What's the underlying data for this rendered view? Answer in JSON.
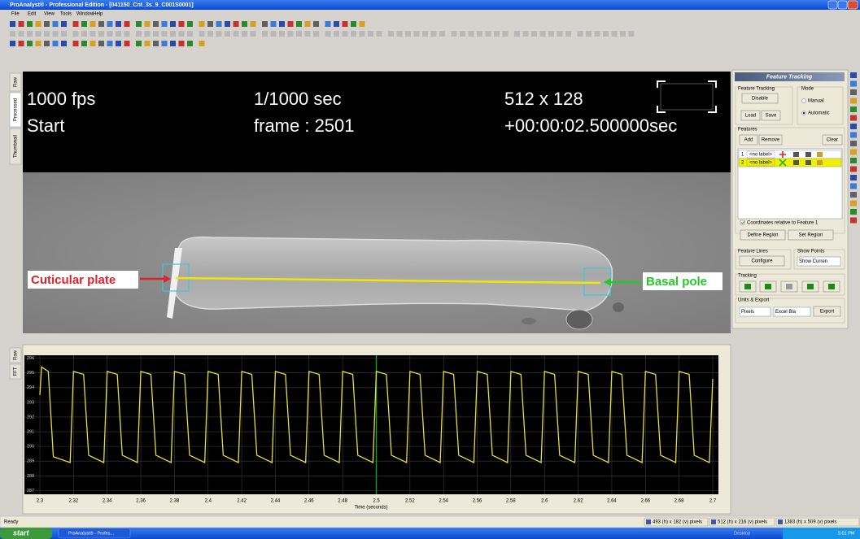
{
  "window": {
    "title": "ProAnalyst® - Professional Edition - [041150_Cnt_3s_9_C001S0001]",
    "menu": [
      "File",
      "Edit",
      "View",
      "Tools",
      "Window",
      "Help"
    ]
  },
  "view_tabs": [
    "Raw",
    "Processed",
    "Thumbnail"
  ],
  "overlay": {
    "fps": "1000 fps",
    "status": "Start",
    "shutter": "1/1000 sec",
    "frame": "frame : 2501",
    "resolution": "512 x 128",
    "timestamp": "+00:00:02.500000sec"
  },
  "annotations": {
    "left": "Cuticular plate",
    "right": "Basal pole"
  },
  "panel": {
    "title": "Feature Tracking",
    "tracking_group": "Feature Tracking",
    "disable": "Disable",
    "mode": "Mode",
    "manual": "Manual",
    "automatic": "Automatic",
    "load": "Load",
    "save": "Save",
    "features": "Features",
    "add": "Add",
    "remove": "Remove",
    "clear": "Clear",
    "rows": [
      [
        "1",
        "<no label>"
      ],
      [
        "2",
        "<no label>"
      ]
    ],
    "relative": "Coordinates relative to Feature 1",
    "define_region": "Define Region",
    "set_region": "Set Region",
    "feature_lines": "Feature Lines",
    "show_points": "Show Points",
    "configure": "Configure",
    "show_select": "Show Curren",
    "tracking": "Tracking",
    "units_export": "Units & Export",
    "units": "Pixels",
    "format": "Excel Bla",
    "export": "Export"
  },
  "plot": {
    "tabs": [
      "Raw",
      "FFT"
    ],
    "x_label": "Time (seconds)",
    "color": "#e6dc3c",
    "cursor_x": 2.5,
    "grid": true,
    "xlim": [
      2.3,
      2.7
    ],
    "ylim": [
      286.8,
      296.2
    ],
    "xticks": [
      2.3,
      2.32,
      2.34,
      2.36,
      2.38,
      2.4,
      2.42,
      2.44,
      2.46,
      2.48,
      2.5,
      2.52,
      2.54,
      2.56,
      2.58,
      2.6,
      2.62,
      2.64,
      2.66,
      2.68,
      2.7
    ],
    "yticks": [
      287,
      288,
      289,
      290,
      291,
      292,
      293,
      294,
      295,
      296
    ],
    "x": [
      2.3,
      2.301,
      2.305,
      2.308,
      2.318,
      2.32,
      2.326,
      2.329,
      2.338,
      2.34,
      2.346,
      2.349,
      2.358,
      2.36,
      2.366,
      2.369,
      2.378,
      2.38,
      2.386,
      2.389,
      2.398,
      2.4,
      2.406,
      2.409,
      2.418,
      2.42,
      2.426,
      2.429,
      2.438,
      2.44,
      2.446,
      2.449,
      2.458,
      2.46,
      2.466,
      2.469,
      2.478,
      2.48,
      2.486,
      2.489,
      2.498,
      2.5,
      2.506,
      2.509,
      2.518,
      2.52,
      2.526,
      2.529,
      2.538,
      2.54,
      2.546,
      2.549,
      2.558,
      2.56,
      2.566,
      2.569,
      2.578,
      2.58,
      2.586,
      2.589,
      2.598,
      2.6,
      2.606,
      2.609,
      2.618,
      2.62,
      2.626,
      2.629,
      2.638,
      2.64,
      2.646,
      2.649,
      2.658,
      2.66,
      2.666,
      2.669,
      2.678,
      2.68,
      2.686,
      2.689,
      2.698,
      2.7
    ],
    "y": [
      293.5,
      295.4,
      295.1,
      289.3,
      288.9,
      295.1,
      294.9,
      289.4,
      288.9,
      295.1,
      294.9,
      289.4,
      288.9,
      295.1,
      294.9,
      289.4,
      288.9,
      295.1,
      294.9,
      289.4,
      288.9,
      295.1,
      294.9,
      289.4,
      288.9,
      295.1,
      294.9,
      289.4,
      288.9,
      295.1,
      294.9,
      289.4,
      288.9,
      295.1,
      294.9,
      289.4,
      288.9,
      295.1,
      294.9,
      289.4,
      288.9,
      295.1,
      294.9,
      289.4,
      288.9,
      295.1,
      294.9,
      289.4,
      288.9,
      295.1,
      294.9,
      289.4,
      288.9,
      295.1,
      294.9,
      289.4,
      288.9,
      295.1,
      294.9,
      289.4,
      288.9,
      295.1,
      294.9,
      289.4,
      288.9,
      295.1,
      294.9,
      289.4,
      288.9,
      295.1,
      294.9,
      289.4,
      288.9,
      295.1,
      294.9,
      289.4,
      288.9,
      295.1,
      294.9,
      289.4,
      288.9,
      294.6
    ]
  },
  "status_bar": {
    "left": "Ready",
    "fields": [
      "493 (h) x 182 (v) pixels",
      "512 (h) x 216 (v) pixels",
      "1383 (h) x 509 (v) pixels"
    ]
  },
  "taskbar": {
    "start": "start",
    "task": "ProAnalyst® - Profes...",
    "desktop": "Desktop",
    "clock": "5:01 PM"
  }
}
